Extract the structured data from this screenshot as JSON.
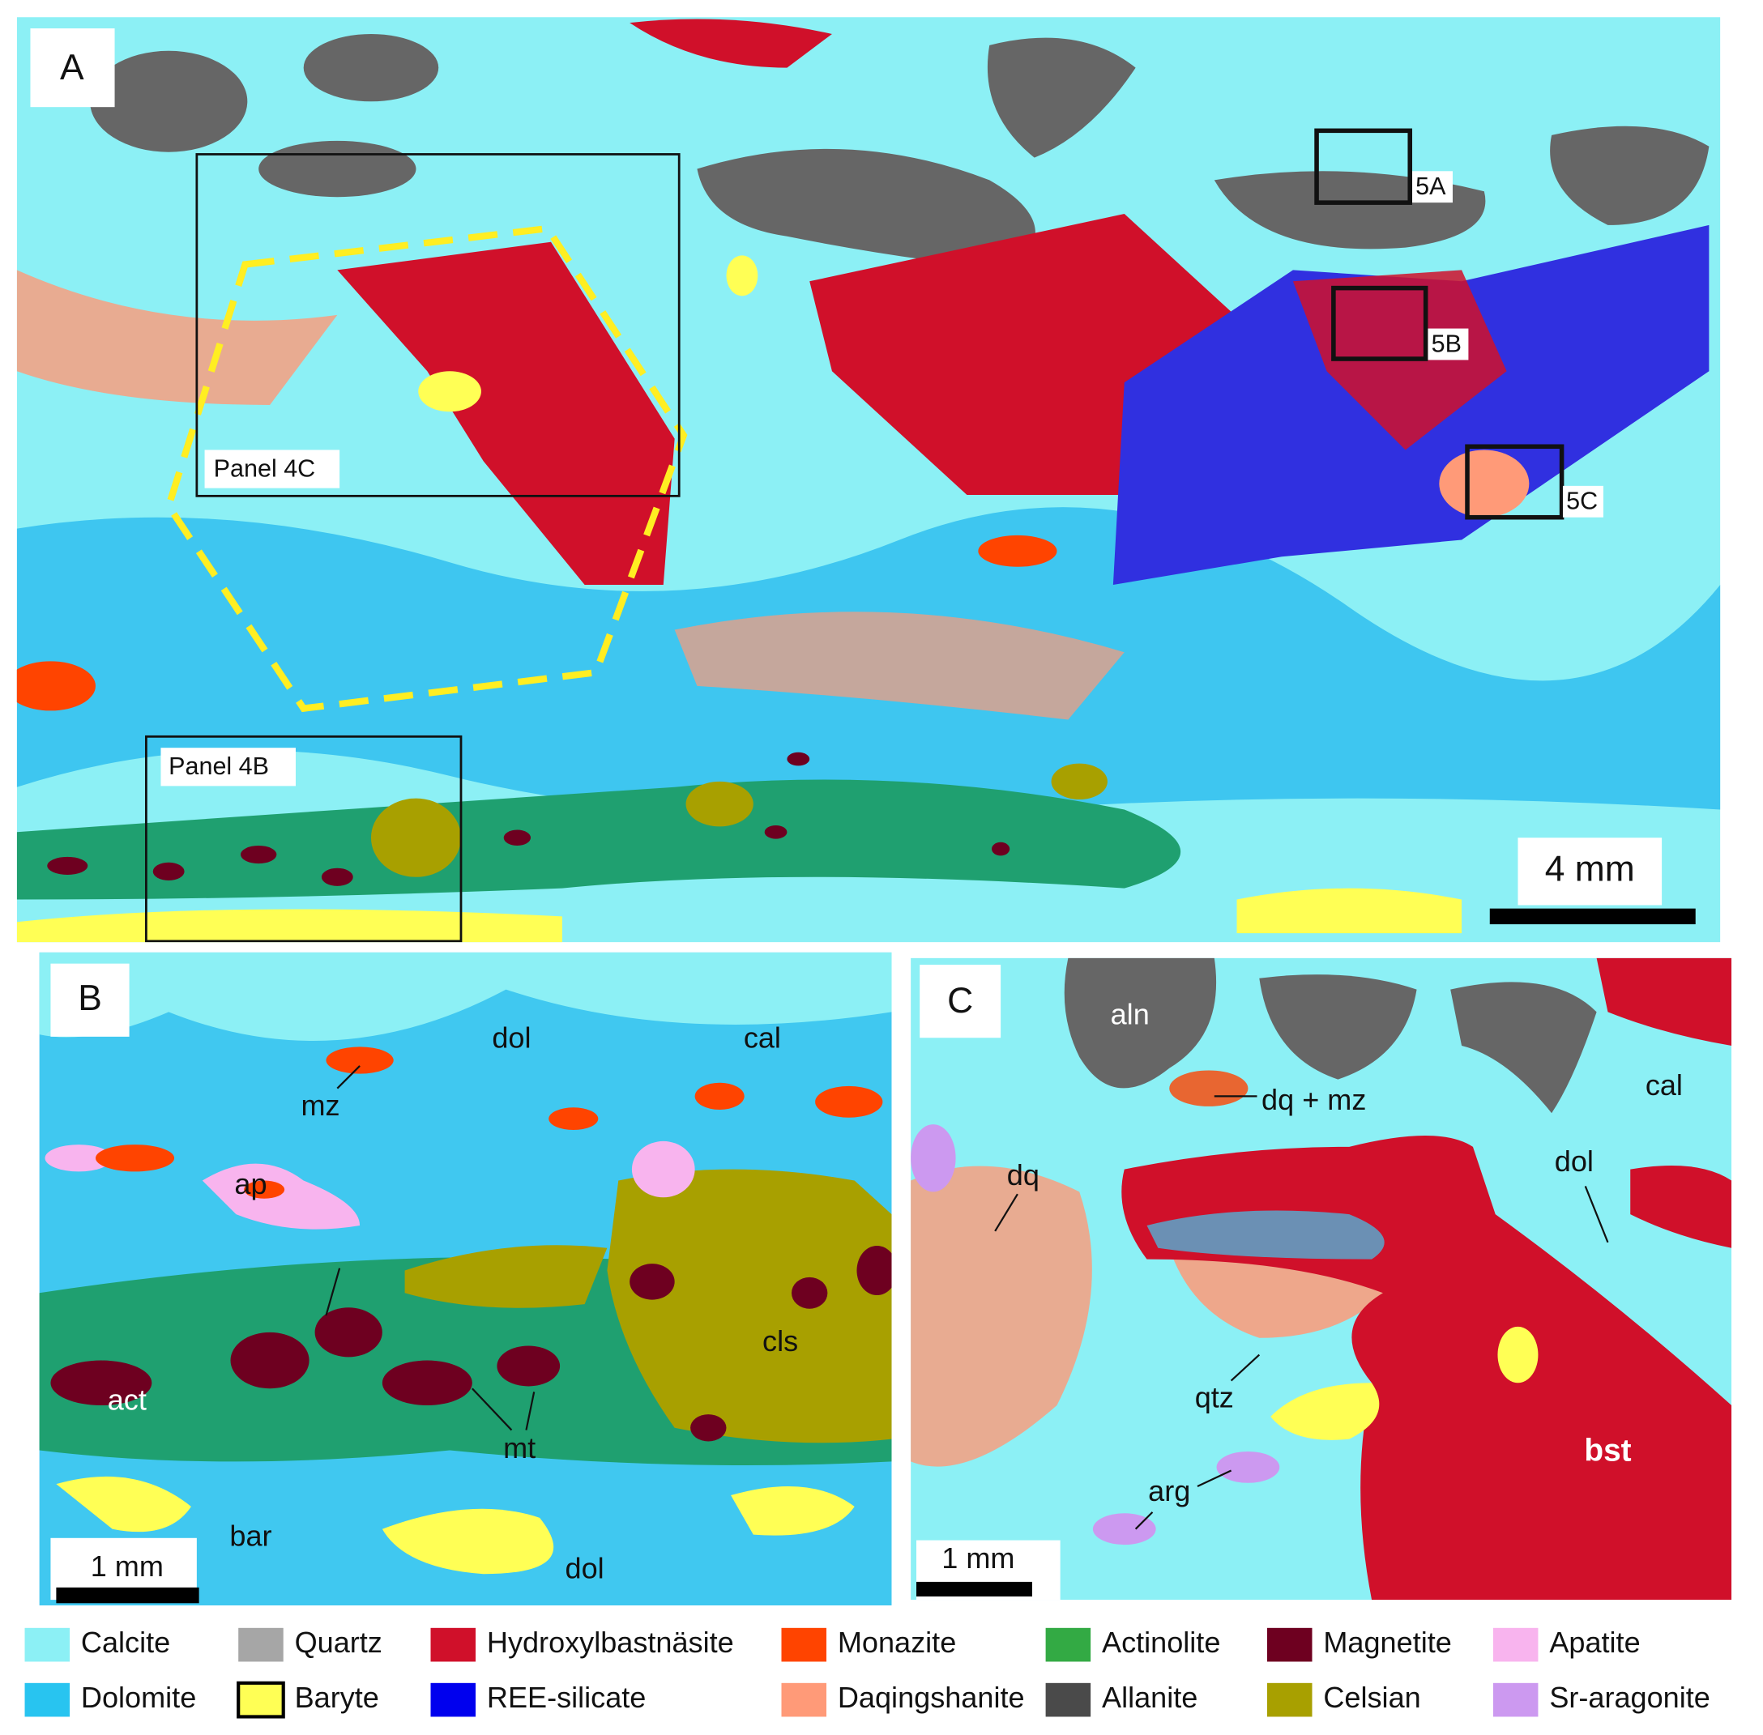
{
  "panels": [
    {
      "label": "A",
      "annotations": [
        "5A",
        "5B",
        "5C",
        "Panel 4C",
        "Panel 4B"
      ],
      "scale_bar": "4 mm"
    },
    {
      "label": "B",
      "annotations": [
        "dol",
        "cal",
        "mz",
        "ap",
        "act",
        "mt",
        "cls",
        "bar",
        "dol"
      ],
      "scale_bar": "1 mm"
    },
    {
      "label": "C",
      "annotations": [
        "aln",
        "dq + mz",
        "cal",
        "dq",
        "dol",
        "qtz",
        "arg",
        "bst"
      ],
      "scale_bar": "1 mm"
    }
  ],
  "legend": [
    {
      "name": "Calcite",
      "color": "#8cf0f5"
    },
    {
      "name": "Quartz",
      "color": "#a6a6a6"
    },
    {
      "name": "Hydroxylbastnäsite",
      "color": "#d0102a"
    },
    {
      "name": "Monazite",
      "color": "#ff4400"
    },
    {
      "name": "Actinolite",
      "color": "#33aa44"
    },
    {
      "name": "Magnetite",
      "color": "#6e0020"
    },
    {
      "name": "Apatite",
      "color": "#f8b4ee"
    },
    {
      "name": "Dolomite",
      "color": "#28c4f0"
    },
    {
      "name": "Baryte",
      "color": "#ffff55"
    },
    {
      "name": "REE-silicate",
      "color": "#0000ee"
    },
    {
      "name": "Daqingshanite",
      "color": "#ff9a78"
    },
    {
      "name": "Allanite",
      "color": "#4a4a4a"
    },
    {
      "name": "Celsian",
      "color": "#a8a000"
    },
    {
      "name": "Sr-aragonite",
      "color": "#cc99f0"
    }
  ]
}
